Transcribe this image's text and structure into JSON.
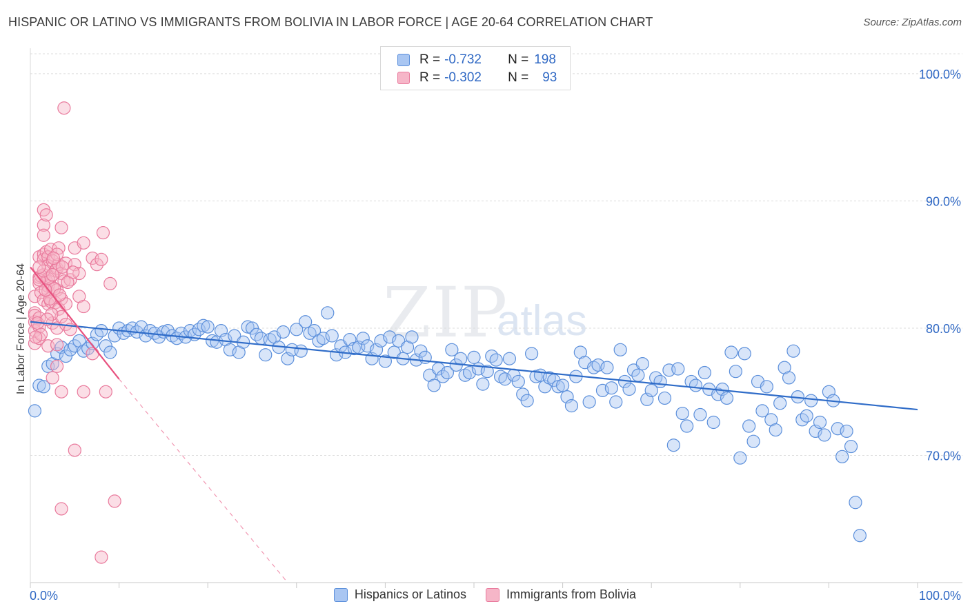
{
  "chart_data": {
    "type": "scatter",
    "title": "HISPANIC OR LATINO VS IMMIGRANTS FROM BOLIVIA IN LABOR FORCE | AGE 20-64 CORRELATION CHART",
    "source": "Source: ZipAtlas.com",
    "ylabel": "In Labor Force | Age 20-64",
    "xlim": [
      0,
      100
    ],
    "ylim": [
      60,
      102
    ],
    "x_tick_labels": [
      "0.0%",
      "100.0%"
    ],
    "y_ticks": [
      70,
      80,
      90,
      100
    ],
    "y_tick_labels": [
      "70.0%",
      "80.0%",
      "90.0%",
      "100.0%"
    ],
    "watermark": [
      "ZIP",
      "atlas"
    ],
    "colors": {
      "blue_fill": "#a9c6f2",
      "blue_edge": "#5b8fdb",
      "blue_line": "#2f6cc8",
      "pink_fill": "#f6b6c8",
      "pink_edge": "#e9799c",
      "pink_line": "#e8517f",
      "tick_label": "#2f68c4",
      "grid": "#dcdcdc"
    },
    "stats": [
      {
        "r_label": "R = ",
        "r": "-0.732",
        "n_label": "N = ",
        "n": "198"
      },
      {
        "r_label": "R = ",
        "r": "-0.302",
        "n_label": "N = ",
        "n": "93"
      }
    ],
    "series": [
      {
        "name": "Hispanics or Latinos",
        "trend": {
          "x0": 0,
          "y0": 80.5,
          "x1": 100,
          "y1": 73.6
        },
        "points": [
          [
            0.5,
            73.5
          ],
          [
            1,
            75.5
          ],
          [
            1.5,
            75.4
          ],
          [
            2,
            77
          ],
          [
            2.5,
            77.2
          ],
          [
            3,
            78
          ],
          [
            3.5,
            78.5
          ],
          [
            4,
            77.8
          ],
          [
            4.5,
            78.3
          ],
          [
            5,
            78.6
          ],
          [
            5.5,
            79
          ],
          [
            6,
            78.2
          ],
          [
            6.5,
            78.4
          ],
          [
            7,
            78.8
          ],
          [
            7.5,
            79.5
          ],
          [
            8,
            79.8
          ],
          [
            8.5,
            78.6
          ],
          [
            9,
            78.1
          ],
          [
            9.5,
            79.4
          ],
          [
            10,
            80
          ],
          [
            10.5,
            79.6
          ],
          [
            11,
            79.8
          ],
          [
            11.5,
            80
          ],
          [
            12,
            79.7
          ],
          [
            12.5,
            80.1
          ],
          [
            13,
            79.4
          ],
          [
            13.5,
            79.8
          ],
          [
            14,
            79.6
          ],
          [
            14.5,
            79.3
          ],
          [
            15,
            79.7
          ],
          [
            15.5,
            79.8
          ],
          [
            16,
            79.4
          ],
          [
            16.5,
            79.2
          ],
          [
            17,
            79.6
          ],
          [
            17.5,
            79.3
          ],
          [
            18,
            79.8
          ],
          [
            18.5,
            79.5
          ],
          [
            19,
            79.9
          ],
          [
            19.5,
            80.2
          ],
          [
            20,
            80.1
          ],
          [
            20.5,
            79
          ],
          [
            21,
            78.9
          ],
          [
            21.5,
            79.8
          ],
          [
            22,
            79.1
          ],
          [
            22.5,
            78.3
          ],
          [
            23,
            79.4
          ],
          [
            23.5,
            78.1
          ],
          [
            24,
            78.9
          ],
          [
            24.5,
            80.1
          ],
          [
            25,
            80
          ],
          [
            25.5,
            79.5
          ],
          [
            26,
            79.2
          ],
          [
            26.5,
            77.9
          ],
          [
            27,
            79.1
          ],
          [
            27.5,
            79.3
          ],
          [
            28,
            78.5
          ],
          [
            28.5,
            79.7
          ],
          [
            29,
            77.6
          ],
          [
            29.5,
            78.3
          ],
          [
            30,
            79.9
          ],
          [
            30.5,
            78.2
          ],
          [
            31,
            80.5
          ],
          [
            31.5,
            79.6
          ],
          [
            32,
            79.8
          ],
          [
            32.5,
            79
          ],
          [
            33,
            79.2
          ],
          [
            33.5,
            81.2
          ],
          [
            34,
            79.4
          ],
          [
            34.5,
            77.9
          ],
          [
            35,
            78.6
          ],
          [
            35.5,
            78.1
          ],
          [
            36,
            79.1
          ],
          [
            36.5,
            78.4
          ],
          [
            37,
            78.5
          ],
          [
            37.5,
            79.2
          ],
          [
            38,
            78.6
          ],
          [
            38.5,
            77.6
          ],
          [
            39,
            78.3
          ],
          [
            39.5,
            79
          ],
          [
            40,
            77.4
          ],
          [
            40.5,
            79.3
          ],
          [
            41,
            78.1
          ],
          [
            41.5,
            79
          ],
          [
            42,
            77.6
          ],
          [
            42.5,
            78.5
          ],
          [
            43,
            79.3
          ],
          [
            43.5,
            77.5
          ],
          [
            44,
            78.2
          ],
          [
            44.5,
            77.7
          ],
          [
            45,
            76.3
          ],
          [
            45.5,
            75.5
          ],
          [
            46,
            76.8
          ],
          [
            46.5,
            76.2
          ],
          [
            47,
            76.5
          ],
          [
            47.5,
            78.3
          ],
          [
            48,
            77.1
          ],
          [
            48.5,
            77.6
          ],
          [
            49,
            76.3
          ],
          [
            49.5,
            76.5
          ],
          [
            50,
            77.7
          ],
          [
            50.5,
            76.8
          ],
          [
            51,
            75.6
          ],
          [
            51.5,
            76.6
          ],
          [
            52,
            77.8
          ],
          [
            52.5,
            77.5
          ],
          [
            53,
            76.2
          ],
          [
            53.5,
            76
          ],
          [
            54,
            77.6
          ],
          [
            54.5,
            76.3
          ],
          [
            55,
            75.8
          ],
          [
            55.5,
            74.8
          ],
          [
            56,
            74.3
          ],
          [
            56.5,
            78
          ],
          [
            57,
            76.2
          ],
          [
            57.5,
            76.3
          ],
          [
            58,
            75.4
          ],
          [
            58.5,
            76.1
          ],
          [
            59,
            75.9
          ],
          [
            59.5,
            75.4
          ],
          [
            60,
            75.5
          ],
          [
            60.5,
            74.6
          ],
          [
            61,
            73.9
          ],
          [
            61.5,
            76.2
          ],
          [
            62,
            78.1
          ],
          [
            62.5,
            77.3
          ],
          [
            63,
            74.2
          ],
          [
            63.5,
            76.9
          ],
          [
            64,
            77.1
          ],
          [
            64.5,
            75.1
          ],
          [
            65,
            76.9
          ],
          [
            65.5,
            75.3
          ],
          [
            66,
            74.2
          ],
          [
            66.5,
            78.3
          ],
          [
            67,
            75.8
          ],
          [
            67.5,
            75.2
          ],
          [
            68,
            76.7
          ],
          [
            68.5,
            76.3
          ],
          [
            69,
            77.2
          ],
          [
            69.5,
            74.4
          ],
          [
            70,
            75.1
          ],
          [
            70.5,
            76.1
          ],
          [
            71,
            75.8
          ],
          [
            71.5,
            74.5
          ],
          [
            72,
            76.7
          ],
          [
            72.5,
            70.8
          ],
          [
            73,
            76.8
          ],
          [
            73.5,
            73.3
          ],
          [
            74,
            72.3
          ],
          [
            74.5,
            75.8
          ],
          [
            75,
            75.5
          ],
          [
            75.5,
            73.2
          ],
          [
            76,
            76.5
          ],
          [
            76.5,
            75.2
          ],
          [
            77,
            72.6
          ],
          [
            77.5,
            74.8
          ],
          [
            78,
            75.2
          ],
          [
            78.5,
            74.5
          ],
          [
            79,
            78.1
          ],
          [
            79.5,
            76.6
          ],
          [
            80,
            69.8
          ],
          [
            80.5,
            78
          ],
          [
            81,
            72.3
          ],
          [
            81.5,
            71.1
          ],
          [
            82,
            75.8
          ],
          [
            82.5,
            73.5
          ],
          [
            83,
            75.4
          ],
          [
            83.5,
            72.8
          ],
          [
            84,
            72
          ],
          [
            84.5,
            74.1
          ],
          [
            85,
            76.9
          ],
          [
            85.5,
            76.1
          ],
          [
            86,
            78.2
          ],
          [
            86.5,
            74.6
          ],
          [
            87,
            72.8
          ],
          [
            87.5,
            73.1
          ],
          [
            88,
            74.3
          ],
          [
            88.5,
            71.9
          ],
          [
            89,
            72.6
          ],
          [
            89.5,
            71.6
          ],
          [
            90,
            75
          ],
          [
            90.5,
            74.3
          ],
          [
            91,
            72.1
          ],
          [
            91.5,
            69.9
          ],
          [
            92,
            71.9
          ],
          [
            92.5,
            70.7
          ],
          [
            93,
            66.3
          ],
          [
            93.5,
            63.7
          ]
        ]
      },
      {
        "name": "Immigrants from Bolivia",
        "trend": {
          "x0": 0,
          "y0": 84.8,
          "x1": 10,
          "y1": 76
        },
        "trend_dashed": {
          "x0": 10,
          "y0": 76,
          "x1": 29,
          "y1": 60
        },
        "points": [
          [
            0.5,
            80.5
          ],
          [
            0.5,
            81.2
          ],
          [
            0.5,
            79.8
          ],
          [
            0.5,
            82.5
          ],
          [
            0.5,
            78.8
          ],
          [
            0.5,
            81
          ],
          [
            1,
            83.5
          ],
          [
            1,
            84
          ],
          [
            1,
            80.8
          ],
          [
            1,
            85.6
          ],
          [
            1,
            80.1
          ],
          [
            1,
            79.2
          ],
          [
            1.2,
            82.8
          ],
          [
            1.2,
            84.1
          ],
          [
            1.5,
            89.3
          ],
          [
            1.5,
            88.1
          ],
          [
            1.5,
            87.3
          ],
          [
            1.5,
            85.8
          ],
          [
            1.5,
            85.4
          ],
          [
            1.5,
            84.2
          ],
          [
            1.5,
            82.2
          ],
          [
            1.8,
            88.9
          ],
          [
            1.8,
            86
          ],
          [
            1.8,
            83.7
          ],
          [
            2,
            85.6
          ],
          [
            2,
            84.9
          ],
          [
            2,
            83.3
          ],
          [
            2,
            82.9
          ],
          [
            2,
            81.9
          ],
          [
            2,
            78.6
          ],
          [
            2.3,
            86.2
          ],
          [
            2.3,
            84
          ],
          [
            2.3,
            82.1
          ],
          [
            2.5,
            85.3
          ],
          [
            2.5,
            83.2
          ],
          [
            2.5,
            80.4
          ],
          [
            2.5,
            76.1
          ],
          [
            2.8,
            84.5
          ],
          [
            2.8,
            82
          ],
          [
            3,
            84.7
          ],
          [
            3,
            83
          ],
          [
            3,
            80
          ],
          [
            3,
            78.7
          ],
          [
            3,
            77
          ],
          [
            3.2,
            86.3
          ],
          [
            3.2,
            85
          ],
          [
            3.2,
            81.5
          ],
          [
            3.5,
            87.9
          ],
          [
            3.5,
            84.3
          ],
          [
            3.5,
            82.3
          ],
          [
            3.5,
            80.9
          ],
          [
            3.5,
            75
          ],
          [
            3.5,
            65.8
          ],
          [
            3.8,
            97.3
          ],
          [
            3.8,
            83.7
          ],
          [
            4,
            85.1
          ],
          [
            4,
            81.9
          ],
          [
            4,
            80.3
          ],
          [
            4.5,
            83.8
          ],
          [
            4.5,
            79.9
          ],
          [
            5,
            86.3
          ],
          [
            5,
            85
          ],
          [
            5,
            70.4
          ],
          [
            5.5,
            84.3
          ],
          [
            5.5,
            82.5
          ],
          [
            6,
            86.7
          ],
          [
            6,
            81.7
          ],
          [
            6,
            75
          ],
          [
            7,
            85.5
          ],
          [
            7.5,
            85
          ],
          [
            7,
            78
          ],
          [
            8,
            85.4
          ],
          [
            8.2,
            87.5
          ],
          [
            8.5,
            75
          ],
          [
            9,
            83.5
          ],
          [
            9.5,
            66.4
          ],
          [
            8,
            62
          ],
          [
            2,
            83.9
          ],
          [
            1,
            83.8
          ],
          [
            1.5,
            84.5
          ],
          [
            2.5,
            84.2
          ],
          [
            3,
            85.8
          ],
          [
            0.8,
            80.4
          ],
          [
            1.2,
            79.5
          ],
          [
            2.2,
            82.3
          ],
          [
            2.7,
            83.1
          ],
          [
            3.3,
            82.6
          ],
          [
            4.2,
            83.6
          ],
          [
            1,
            84.8
          ],
          [
            1.7,
            83
          ],
          [
            2.4,
            81.1
          ],
          [
            0.6,
            79.3
          ],
          [
            1.9,
            80.7
          ],
          [
            2.6,
            85.5
          ],
          [
            3.6,
            84.8
          ],
          [
            4.8,
            84.4
          ]
        ]
      }
    ],
    "legend": [
      "Hispanics or Latinos",
      "Immigrants from Bolivia"
    ]
  }
}
